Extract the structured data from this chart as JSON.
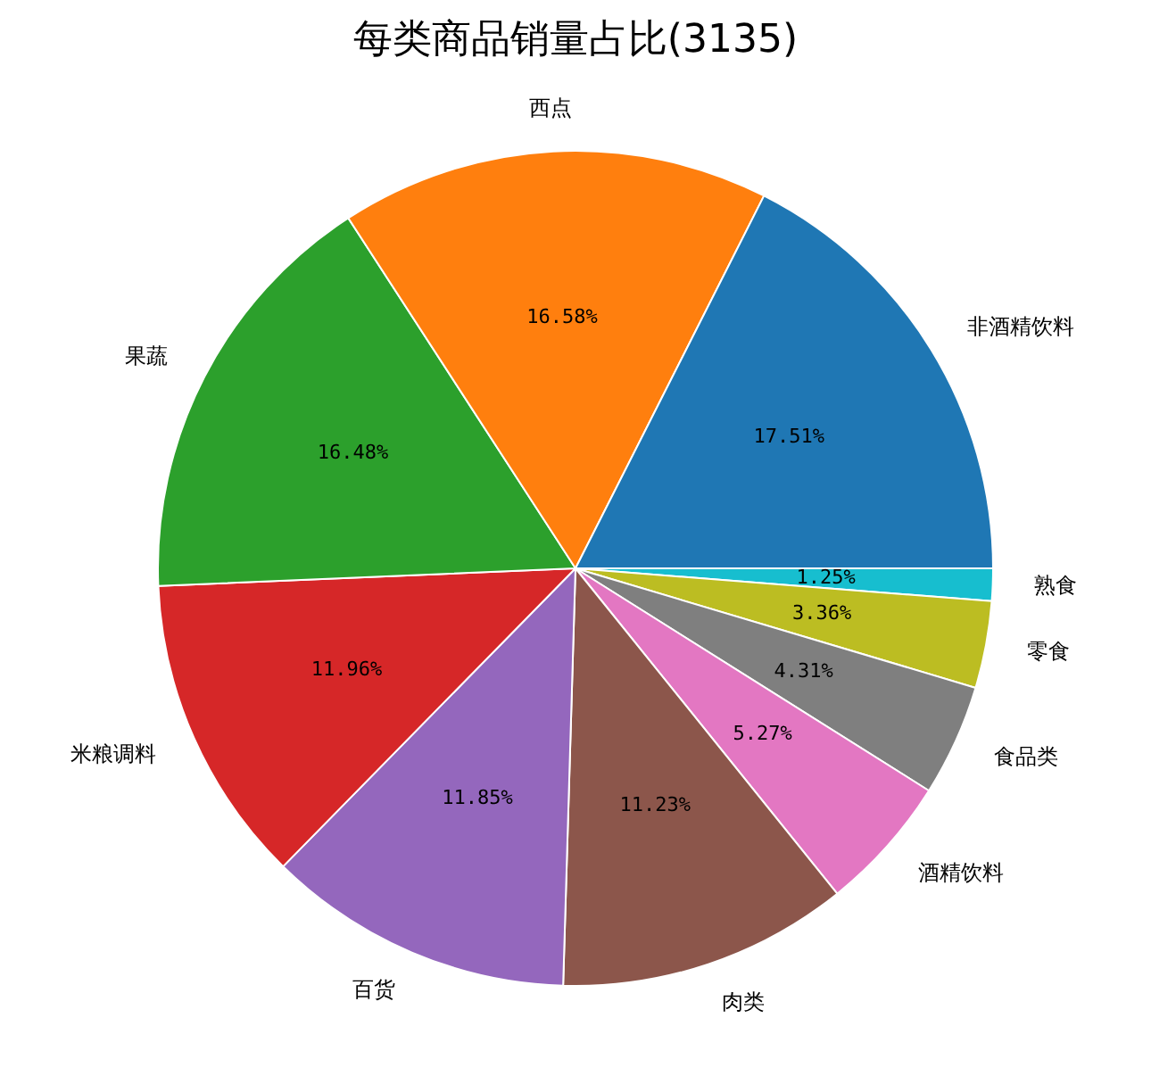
{
  "chart_data": {
    "type": "pie",
    "title": "每类商品销量占比(3135)",
    "categories": [
      "非酒精饮料",
      "西点",
      "果蔬",
      "米粮调料",
      "百货",
      "肉类",
      "酒精饮料",
      "食品类",
      "零食",
      "熟食"
    ],
    "values": [
      17.51,
      16.58,
      16.48,
      11.96,
      11.85,
      11.23,
      5.27,
      4.31,
      3.36,
      1.25
    ],
    "value_labels": [
      "17.51%",
      "16.58%",
      "16.48%",
      "11.96%",
      "11.85%",
      "11.23%",
      "5.27%",
      "4.31%",
      "3.36%",
      "1.25%"
    ],
    "colors": [
      "#1f77b4",
      "#ff7f0e",
      "#2ca02c",
      "#d62728",
      "#9467bd",
      "#8c564b",
      "#e377c2",
      "#7f7f7f",
      "#bcbd22",
      "#17becf"
    ],
    "legend": false
  }
}
